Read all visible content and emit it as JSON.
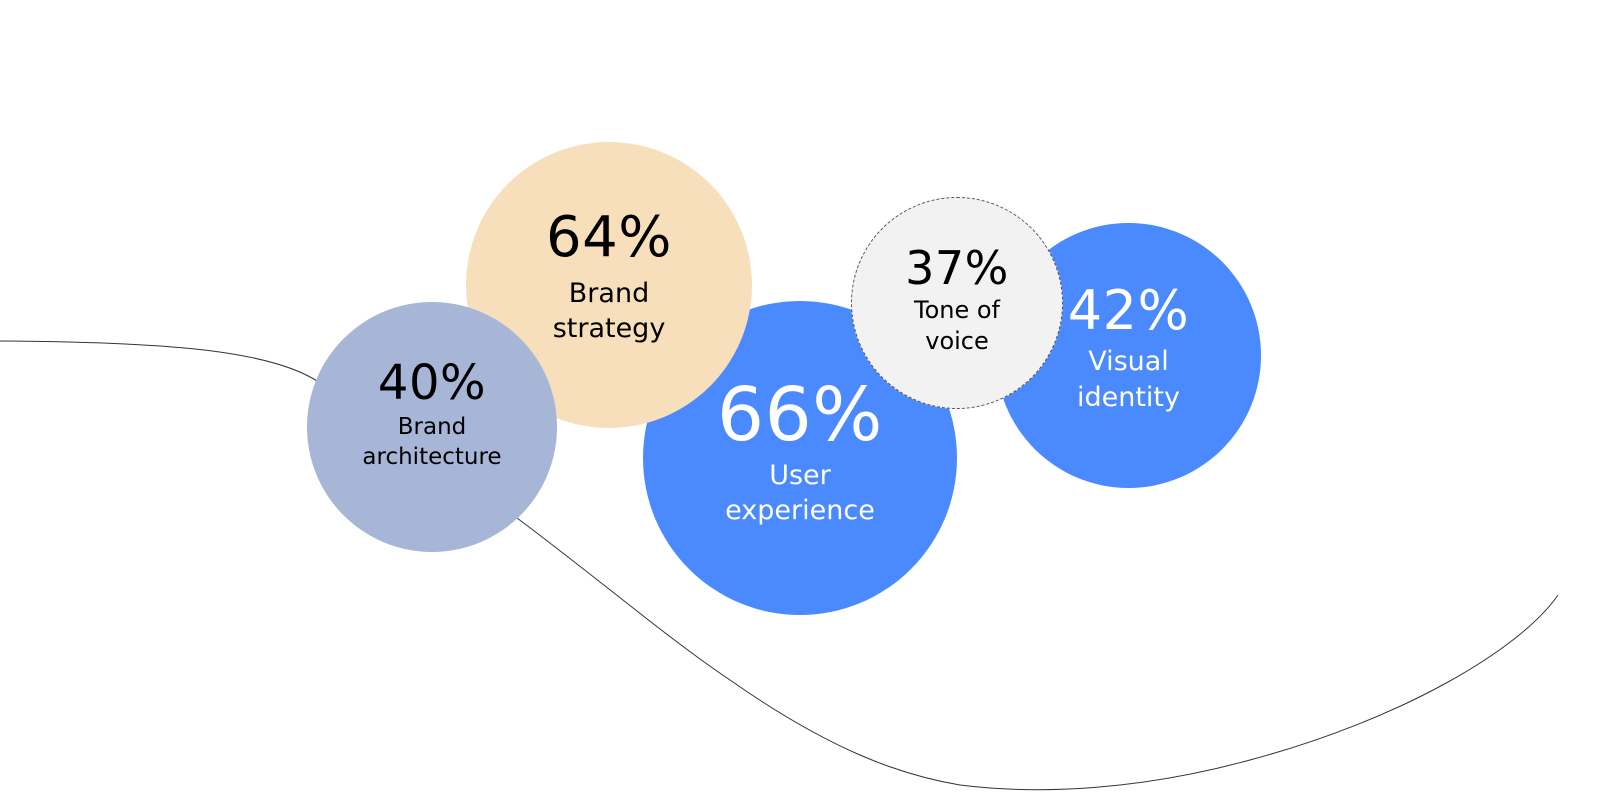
{
  "chart_data": {
    "type": "bubble",
    "title": "",
    "categories": [
      "Brand architecture",
      "Brand strategy",
      "User experience",
      "Tone of voice",
      "Visual identity"
    ],
    "values": [
      40,
      64,
      66,
      37,
      42
    ],
    "bubbles": [
      {
        "id": "architecture",
        "value_label": "40%",
        "label_line1": "Brand",
        "label_line2": "architecture",
        "value": 40,
        "color": "#a7b6d6",
        "text_color": "#000000"
      },
      {
        "id": "strategy",
        "value_label": "64%",
        "label_line1": "Brand",
        "label_line2": "strategy",
        "value": 64,
        "color": "#f7dfbc",
        "text_color": "#000000"
      },
      {
        "id": "ux",
        "value_label": "66%",
        "label_line1": "User",
        "label_line2": "experience",
        "value": 66,
        "color": "#4a8afe",
        "text_color": "#ffffff"
      },
      {
        "id": "tone",
        "value_label": "37%",
        "label_line1": "Tone of",
        "label_line2": "voice",
        "value": 37,
        "color": "#f2f2f2",
        "text_color": "#000000",
        "border": "dashed"
      },
      {
        "id": "visual",
        "value_label": "42%",
        "label_line1": "Visual",
        "label_line2": "identity",
        "value": 42,
        "color": "#4a8afe",
        "text_color": "#ffffff"
      }
    ],
    "decoration": {
      "background_curve_color": "#333333"
    }
  }
}
